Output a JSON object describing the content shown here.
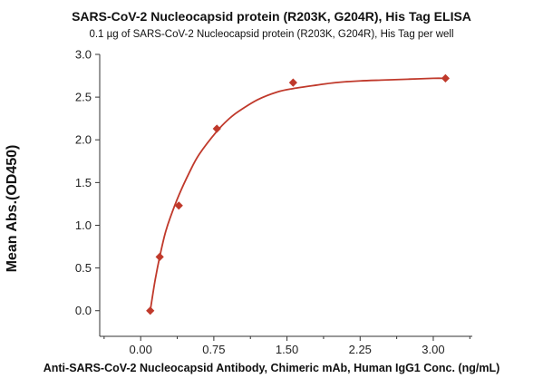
{
  "chart_data": {
    "type": "scatter",
    "title": "SARS-CoV-2 Nucleocapsid protein (R203K, G204R), His Tag ELISA",
    "subtitle": "0.1 µg of SARS-CoV-2 Nucleocapsid protein (R203K, G204R), His Tag per well",
    "xlabel": "Anti-SARS-CoV-2 Nucleocapsid Antibody, Chimeric mAb, Human IgG1 Conc. (ng/mL)",
    "ylabel": "Mean Abs.(OD450)",
    "xlim": [
      -0.42,
      3.4
    ],
    "ylim": [
      -0.3,
      3.0
    ],
    "xticks": [
      0.0,
      0.75,
      1.5,
      2.25,
      3.0
    ],
    "xtick_labels": [
      "0.00",
      "0.75",
      "1.50",
      "2.25",
      "3.00"
    ],
    "yticks": [
      0.0,
      0.5,
      1.0,
      1.5,
      2.0,
      2.5,
      3.0
    ],
    "ytick_labels": [
      "0.0",
      "0.5",
      "1.0",
      "1.5",
      "2.0",
      "2.5",
      "3.0"
    ],
    "grid": false,
    "series": [
      {
        "marker": "diamond",
        "color": "#c0392b",
        "x": [
          0.098,
          0.195,
          0.391,
          0.781,
          1.563,
          3.125
        ],
        "y": [
          0.0,
          0.63,
          1.23,
          2.13,
          2.67,
          2.72
        ]
      }
    ],
    "fit_curve": {
      "color": "#c0392b",
      "x": [
        0.098,
        0.12,
        0.15,
        0.195,
        0.25,
        0.3,
        0.391,
        0.5,
        0.6,
        0.781,
        0.9,
        1.0,
        1.2,
        1.4,
        1.563,
        1.8,
        2.0,
        2.25,
        2.5,
        2.75,
        3.0,
        3.125
      ],
      "y": [
        0.0,
        0.16,
        0.37,
        0.63,
        0.9,
        1.08,
        1.35,
        1.62,
        1.83,
        2.1,
        2.24,
        2.33,
        2.47,
        2.56,
        2.6,
        2.64,
        2.67,
        2.69,
        2.7,
        2.71,
        2.72,
        2.72
      ]
    }
  }
}
